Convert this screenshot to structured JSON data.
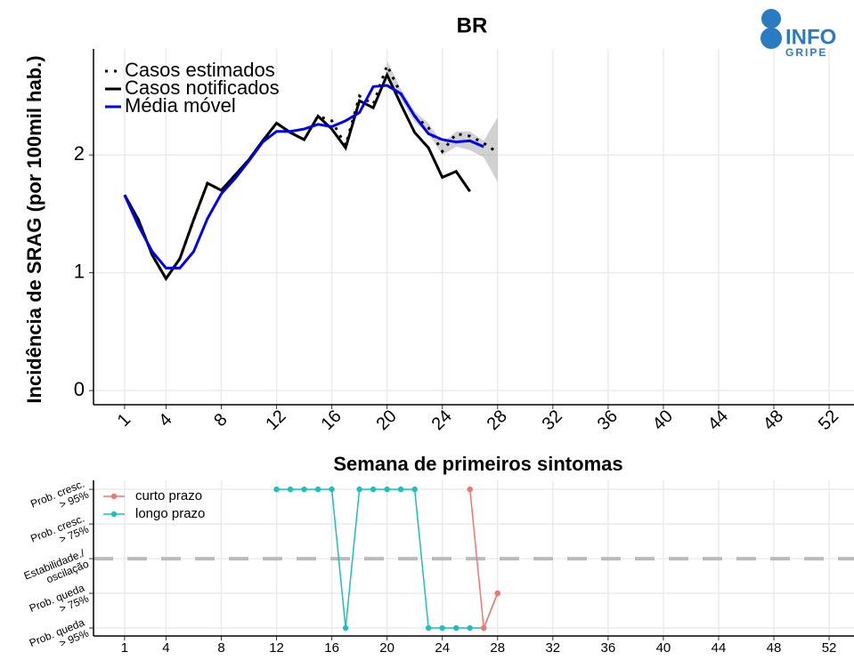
{
  "logo": {
    "line1": "INFO",
    "line2": "GRIPE"
  },
  "chart_data": [
    {
      "type": "line",
      "title": "BR",
      "xlabel": "Semana de primeiros sintomas",
      "ylabel": "Incidência de SRAG (por 100mil hab.)",
      "x": [
        1,
        2,
        3,
        4,
        5,
        6,
        7,
        8,
        9,
        10,
        11,
        12,
        13,
        14,
        15,
        16,
        17,
        18,
        19,
        20,
        21,
        22,
        23,
        24,
        25,
        26,
        27,
        28
      ],
      "series": [
        {
          "name": "Casos estimados",
          "color": "#000000",
          "dash": "dotted",
          "values": [
            1.66,
            1.45,
            1.15,
            0.95,
            1.12,
            1.45,
            1.76,
            1.7,
            1.83,
            1.96,
            2.12,
            2.27,
            2.19,
            2.13,
            2.33,
            2.29,
            2.08,
            2.5,
            2.43,
            2.76,
            2.52,
            2.33,
            2.23,
            2.03,
            2.18,
            2.16,
            2.1,
            2.02
          ]
        },
        {
          "name": "Casos notificados",
          "color": "#000000",
          "dash": "solid",
          "values": [
            1.66,
            1.45,
            1.15,
            0.95,
            1.12,
            1.45,
            1.76,
            1.7,
            1.83,
            1.96,
            2.12,
            2.27,
            2.19,
            2.13,
            2.33,
            2.22,
            2.06,
            2.46,
            2.4,
            2.68,
            2.43,
            2.19,
            2.06,
            1.81,
            1.86,
            1.69,
            null,
            null
          ]
        },
        {
          "name": "Média móvel",
          "color": "#0000ee",
          "dash": "solid",
          "values": [
            1.66,
            1.4,
            1.18,
            1.04,
            1.04,
            1.18,
            1.46,
            1.67,
            1.8,
            1.95,
            2.11,
            2.2,
            2.2,
            2.22,
            2.26,
            2.24,
            2.29,
            2.36,
            2.58,
            2.59,
            2.52,
            2.33,
            2.18,
            2.13,
            2.11,
            2.12,
            2.07,
            null
          ]
        }
      ],
      "ci_lower": [
        null,
        null,
        null,
        null,
        null,
        null,
        null,
        null,
        null,
        null,
        null,
        null,
        null,
        null,
        null,
        null,
        null,
        null,
        null,
        2.7,
        2.47,
        2.28,
        2.18,
        2.0,
        2.07,
        2.04,
        1.98,
        1.77
      ],
      "ci_upper": [
        null,
        null,
        null,
        null,
        null,
        null,
        null,
        null,
        null,
        null,
        null,
        null,
        null,
        null,
        null,
        null,
        null,
        null,
        null,
        2.8,
        2.56,
        2.37,
        2.27,
        2.1,
        2.2,
        2.2,
        2.12,
        2.32
      ],
      "ci_color": "#999999",
      "xlim": [
        -1.25,
        53.8
      ],
      "xticks": [
        1,
        4,
        8,
        12,
        16,
        20,
        24,
        28,
        32,
        36,
        40,
        44,
        48,
        52
      ],
      "ylim": [
        -0.12,
        2.9
      ],
      "yticks": [
        0,
        1,
        2
      ],
      "grid": true,
      "legend": "top-left"
    },
    {
      "type": "line",
      "series": [
        {
          "name": "curto prazo",
          "color": "#f0766e",
          "x": [
            26,
            27,
            28
          ],
          "values": [
            2,
            -2,
            -1
          ]
        },
        {
          "name": "longo prazo",
          "color": "#1dbfbf",
          "x": [
            12,
            13,
            14,
            15,
            16,
            17,
            18,
            19,
            20,
            21,
            22,
            23,
            24,
            25,
            26,
            27,
            28
          ],
          "values": [
            2,
            2,
            2,
            2,
            2,
            -2,
            2,
            2,
            2,
            2,
            2,
            -2,
            -2,
            -2,
            -2,
            -2,
            -1
          ]
        }
      ],
      "hline": 0,
      "xlim": [
        -1.25,
        53.8
      ],
      "xticks": [
        1,
        4,
        8,
        12,
        16,
        20,
        24,
        28,
        32,
        36,
        40,
        44,
        48,
        52
      ],
      "ylim": [
        -2.23,
        2.26
      ],
      "yticks": [
        {
          "value": -2,
          "label": "Prob. queda\n> 95%"
        },
        {
          "value": -1,
          "label": "Prob. queda\n> 75%"
        },
        {
          "value": 0,
          "label": "Estabilidade./\noscilação"
        },
        {
          "value": 1,
          "label": "Prob. cresc.\n> 75%"
        },
        {
          "value": 2,
          "label": "Prob. cresc.\n> 95%"
        }
      ],
      "grid": true,
      "legend": "top-left"
    }
  ]
}
